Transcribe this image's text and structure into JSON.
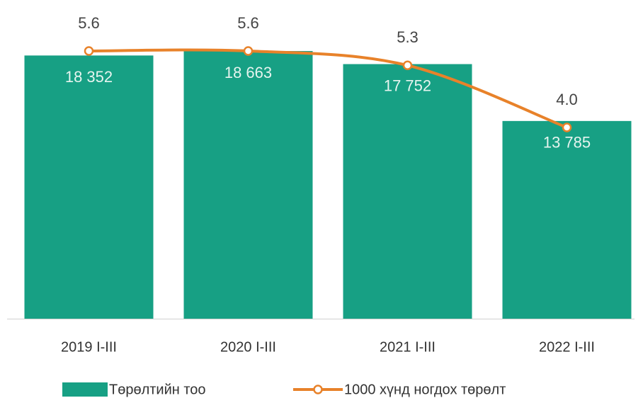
{
  "chart_data": {
    "type": "bar",
    "categories": [
      "2019 I-III",
      "2020 I-III",
      "2021 I-III",
      "2022 I-III"
    ],
    "series": [
      {
        "name": "Төрөлтийн тоо",
        "type": "bar",
        "color": "#17a084",
        "values": [
          18352,
          18663,
          17752,
          13785
        ],
        "value_labels": [
          "18 352",
          "18 663",
          "17 752",
          "13 785"
        ]
      },
      {
        "name": "1000 хүнд ногдох төрөлт",
        "type": "line",
        "axis": "y2",
        "color": "#e8822a",
        "values": [
          5.6,
          5.6,
          5.3,
          4.0
        ],
        "value_labels": [
          "5.6",
          "5.6",
          "5.3",
          "4.0"
        ]
      }
    ],
    "ylim": [
      0,
      20000
    ],
    "y2lim": [
      0,
      6
    ],
    "grid": false,
    "legend": "bottom"
  }
}
